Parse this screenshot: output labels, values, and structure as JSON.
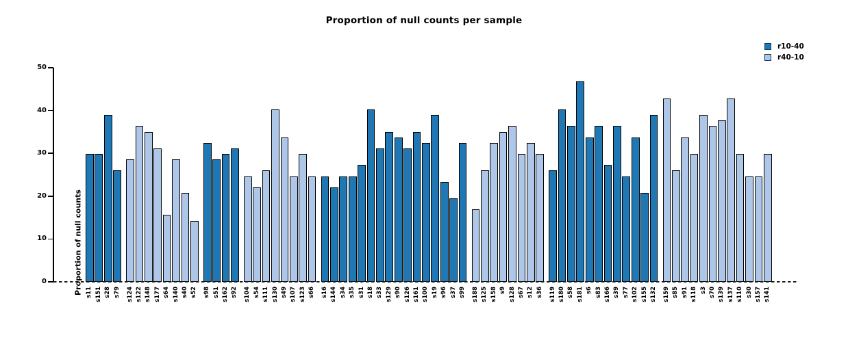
{
  "title": "Proportion of null counts per sample",
  "y_axis": {
    "label": "Proportion of null counts"
  },
  "legend": [
    {
      "label": "r10-40",
      "color": "#1f77b4"
    },
    {
      "label": "r40-10",
      "color": "#aec7e8"
    }
  ],
  "chart_data": {
    "type": "bar",
    "title": "Proportion of null counts per sample",
    "xlabel": "",
    "ylabel": "Proportion of null counts",
    "ylim": [
      0,
      50
    ],
    "yticks": [
      0,
      10,
      20,
      30,
      40,
      50
    ],
    "grid": false,
    "legend_position": "upper right",
    "zero_line_style": "dashed",
    "bar_edge_color": "#000000",
    "series_colors": {
      "r10-40": "#1f77b4",
      "r40-10": "#aec7e8"
    },
    "bars": [
      {
        "label": "s11",
        "value": 29.87,
        "series": "r10-40"
      },
      {
        "label": "s151",
        "value": 29.87,
        "series": "r10-40"
      },
      {
        "label": "s28",
        "value": 38.96,
        "series": "r10-40"
      },
      {
        "label": "s79",
        "value": 25.97,
        "series": "r10-40"
      },
      {
        "label": "s124",
        "value": 28.57,
        "series": "r40-10"
      },
      {
        "label": "s122",
        "value": 36.36,
        "series": "r40-10"
      },
      {
        "label": "s148",
        "value": 35.06,
        "series": "r40-10"
      },
      {
        "label": "s177",
        "value": 31.17,
        "series": "r40-10"
      },
      {
        "label": "s64",
        "value": 15.58,
        "series": "r40-10"
      },
      {
        "label": "s140",
        "value": 28.57,
        "series": "r40-10"
      },
      {
        "label": "s40",
        "value": 20.78,
        "series": "r40-10"
      },
      {
        "label": "s52",
        "value": 14.29,
        "series": "r40-10"
      },
      {
        "label": "s98",
        "value": 32.47,
        "series": "r10-40"
      },
      {
        "label": "s51",
        "value": 28.57,
        "series": "r10-40"
      },
      {
        "label": "s162",
        "value": 29.87,
        "series": "r10-40"
      },
      {
        "label": "s92",
        "value": 31.17,
        "series": "r10-40"
      },
      {
        "label": "s104",
        "value": 24.68,
        "series": "r40-10"
      },
      {
        "label": "s54",
        "value": 22.08,
        "series": "r40-10"
      },
      {
        "label": "s111",
        "value": 25.97,
        "series": "r40-10"
      },
      {
        "label": "s130",
        "value": 40.26,
        "series": "r40-10"
      },
      {
        "label": "s49",
        "value": 33.77,
        "series": "r40-10"
      },
      {
        "label": "s107",
        "value": 24.68,
        "series": "r40-10"
      },
      {
        "label": "s123",
        "value": 29.87,
        "series": "r40-10"
      },
      {
        "label": "s66",
        "value": 24.68,
        "series": "r40-10"
      },
      {
        "label": "s16",
        "value": 24.68,
        "series": "r10-40"
      },
      {
        "label": "s144",
        "value": 22.08,
        "series": "r10-40"
      },
      {
        "label": "s34",
        "value": 24.68,
        "series": "r10-40"
      },
      {
        "label": "s35",
        "value": 24.68,
        "series": "r10-40"
      },
      {
        "label": "s31",
        "value": 27.27,
        "series": "r10-40"
      },
      {
        "label": "s18",
        "value": 40.26,
        "series": "r10-40"
      },
      {
        "label": "s33",
        "value": 31.17,
        "series": "r10-40"
      },
      {
        "label": "s129",
        "value": 35.06,
        "series": "r10-40"
      },
      {
        "label": "s90",
        "value": 33.77,
        "series": "r10-40"
      },
      {
        "label": "s126",
        "value": 31.17,
        "series": "r10-40"
      },
      {
        "label": "s161",
        "value": 35.06,
        "series": "r10-40"
      },
      {
        "label": "s100",
        "value": 32.47,
        "series": "r10-40"
      },
      {
        "label": "s19",
        "value": 38.96,
        "series": "r10-40"
      },
      {
        "label": "s96",
        "value": 23.38,
        "series": "r10-40"
      },
      {
        "label": "s37",
        "value": 19.48,
        "series": "r10-40"
      },
      {
        "label": "s99",
        "value": 32.47,
        "series": "r10-40"
      },
      {
        "label": "s188",
        "value": 16.88,
        "series": "r40-10"
      },
      {
        "label": "s125",
        "value": 25.97,
        "series": "r40-10"
      },
      {
        "label": "s158",
        "value": 32.47,
        "series": "r40-10"
      },
      {
        "label": "s9",
        "value": 35.06,
        "series": "r40-10"
      },
      {
        "label": "s128",
        "value": 36.36,
        "series": "r40-10"
      },
      {
        "label": "s67",
        "value": 29.87,
        "series": "r40-10"
      },
      {
        "label": "s12",
        "value": 32.47,
        "series": "r40-10"
      },
      {
        "label": "s36",
        "value": 29.87,
        "series": "r40-10"
      },
      {
        "label": "s119",
        "value": 25.97,
        "series": "r10-40"
      },
      {
        "label": "s180",
        "value": 40.26,
        "series": "r10-40"
      },
      {
        "label": "s58",
        "value": 36.36,
        "series": "r10-40"
      },
      {
        "label": "s181",
        "value": 46.75,
        "series": "r10-40"
      },
      {
        "label": "s6",
        "value": 33.77,
        "series": "r10-40"
      },
      {
        "label": "s83",
        "value": 36.36,
        "series": "r10-40"
      },
      {
        "label": "s166",
        "value": 27.27,
        "series": "r10-40"
      },
      {
        "label": "s39",
        "value": 36.36,
        "series": "r10-40"
      },
      {
        "label": "s77",
        "value": 24.68,
        "series": "r10-40"
      },
      {
        "label": "s102",
        "value": 33.77,
        "series": "r10-40"
      },
      {
        "label": "s155",
        "value": 20.78,
        "series": "r10-40"
      },
      {
        "label": "s132",
        "value": 38.96,
        "series": "r10-40"
      },
      {
        "label": "s159",
        "value": 42.86,
        "series": "r40-10"
      },
      {
        "label": "s85",
        "value": 25.97,
        "series": "r40-10"
      },
      {
        "label": "s91",
        "value": 33.77,
        "series": "r40-10"
      },
      {
        "label": "s118",
        "value": 29.87,
        "series": "r40-10"
      },
      {
        "label": "s3",
        "value": 38.96,
        "series": "r40-10"
      },
      {
        "label": "s70",
        "value": 36.36,
        "series": "r40-10"
      },
      {
        "label": "s139",
        "value": 37.66,
        "series": "r40-10"
      },
      {
        "label": "s137",
        "value": 42.86,
        "series": "r40-10"
      },
      {
        "label": "s110",
        "value": 29.87,
        "series": "r40-10"
      },
      {
        "label": "s30",
        "value": 24.68,
        "series": "r40-10"
      },
      {
        "label": "s157",
        "value": 24.68,
        "series": "r40-10"
      },
      {
        "label": "s141",
        "value": 29.87,
        "series": "r40-10"
      }
    ]
  }
}
